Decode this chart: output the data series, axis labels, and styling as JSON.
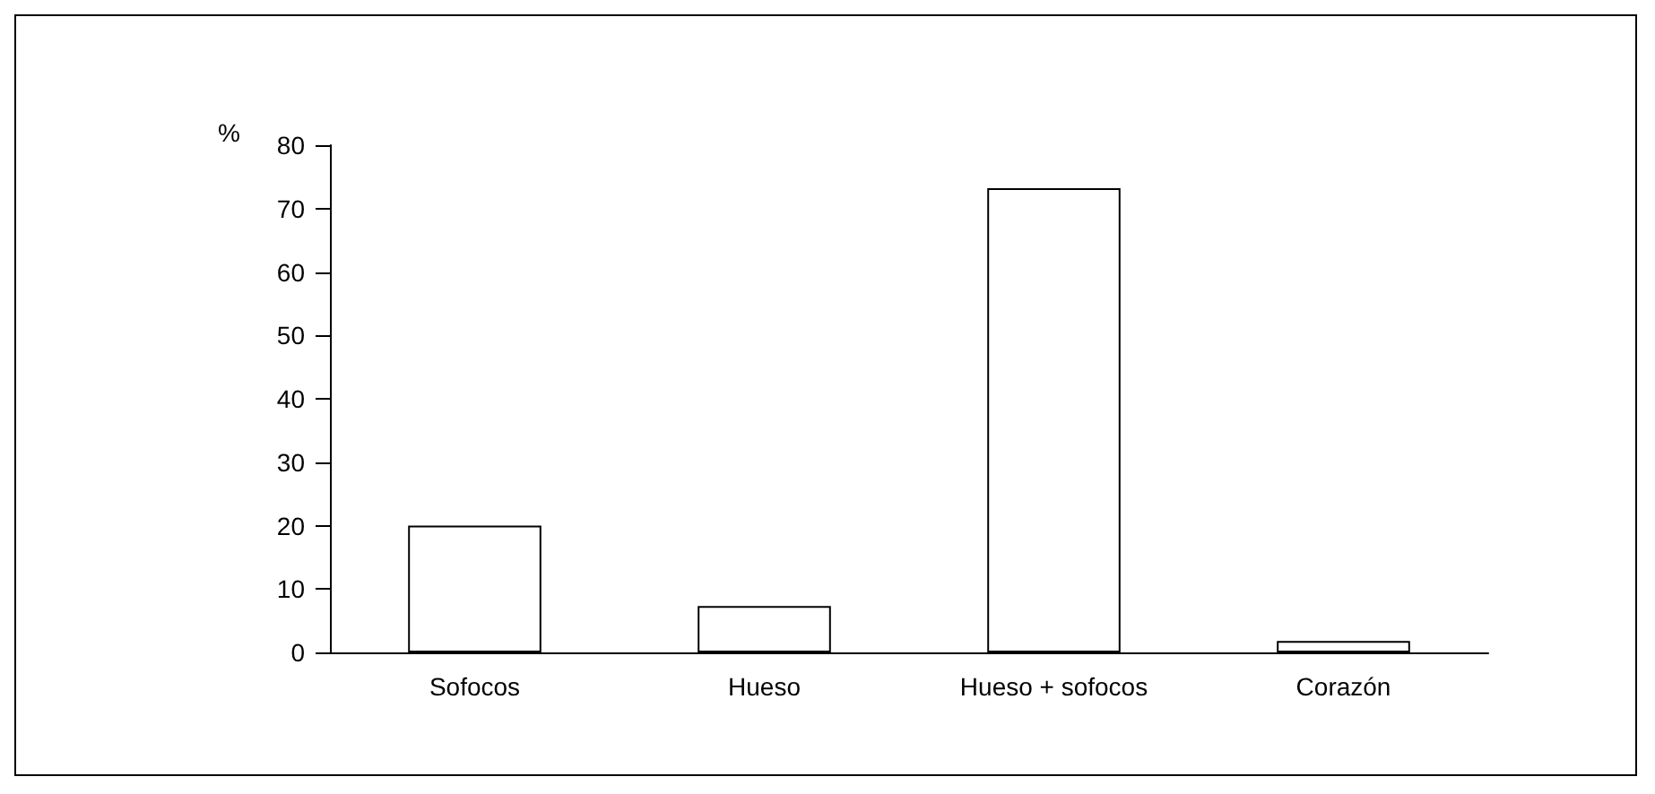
{
  "chart_data": {
    "type": "bar",
    "ylabel": "%",
    "categories": [
      "Sofocos",
      "Hueso",
      "Hueso + sofocos",
      "Corazón"
    ],
    "values": [
      20,
      7.3,
      73.2,
      1.8
    ],
    "color": "#ffffff",
    "ylim": [
      0,
      80
    ],
    "yticks": [
      0,
      10,
      20,
      30,
      40,
      50,
      60,
      70,
      80
    ],
    "grid": false
  }
}
